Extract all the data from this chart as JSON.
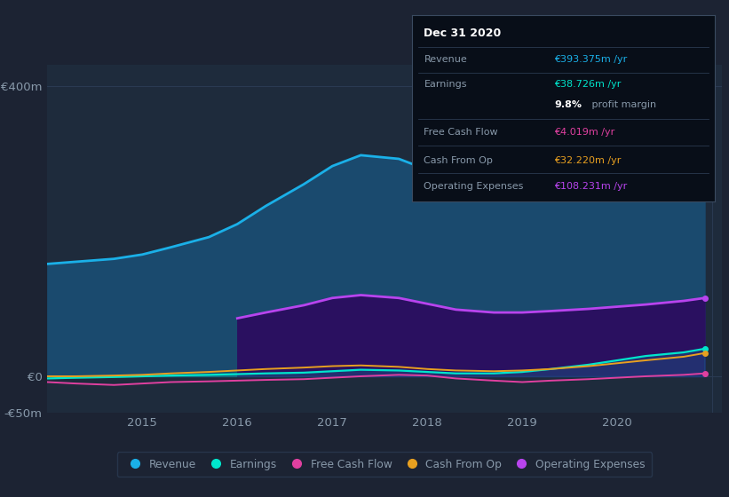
{
  "bg_color": "#1c2333",
  "plot_bg_color": "#1e2b3c",
  "grid_color": "#2a3a52",
  "text_color": "#8899aa",
  "title_color": "#ffffff",
  "years": [
    2014.0,
    2014.3,
    2014.7,
    2015.0,
    2015.3,
    2015.7,
    2016.0,
    2016.3,
    2016.7,
    2017.0,
    2017.3,
    2017.7,
    2018.0,
    2018.3,
    2018.7,
    2019.0,
    2019.3,
    2019.7,
    2020.0,
    2020.3,
    2020.7,
    2020.92
  ],
  "revenue": [
    155,
    158,
    162,
    168,
    178,
    192,
    210,
    235,
    265,
    290,
    305,
    300,
    285,
    278,
    272,
    280,
    295,
    315,
    335,
    355,
    380,
    393
  ],
  "earnings": [
    -3,
    -2,
    -1,
    0,
    1,
    2,
    3,
    4,
    5,
    7,
    9,
    8,
    6,
    4,
    4,
    6,
    10,
    16,
    22,
    28,
    33,
    38
  ],
  "free_cash": [
    -8,
    -10,
    -12,
    -10,
    -8,
    -7,
    -6,
    -5,
    -4,
    -2,
    0,
    2,
    1,
    -3,
    -6,
    -8,
    -6,
    -4,
    -2,
    0,
    2,
    4
  ],
  "cash_from_op": [
    0,
    0,
    1,
    2,
    4,
    6,
    8,
    10,
    12,
    14,
    15,
    13,
    10,
    8,
    7,
    8,
    10,
    14,
    18,
    22,
    27,
    32
  ],
  "op_expenses_x": [
    2016.0,
    2016.3,
    2016.7,
    2017.0,
    2017.3,
    2017.7,
    2018.0,
    2018.3,
    2018.7,
    2019.0,
    2019.3,
    2019.7,
    2020.0,
    2020.3,
    2020.7,
    2020.92
  ],
  "op_expenses": [
    80,
    88,
    98,
    108,
    112,
    108,
    100,
    92,
    88,
    88,
    90,
    93,
    96,
    99,
    104,
    108
  ],
  "revenue_color": "#1ab0e8",
  "earnings_color": "#00e5cc",
  "free_cash_color": "#e040a0",
  "cash_from_op_color": "#e8a020",
  "op_expenses_color": "#b844ee",
  "revenue_fill": "#1a4a6e",
  "op_expenses_fill": "#2a1060",
  "ylim_min": -50,
  "ylim_max": 430,
  "ytick_positions": [
    -50,
    0,
    400
  ],
  "ytick_labels": [
    "-€50m",
    "€0",
    "€400m"
  ],
  "xlim_min": 2014.0,
  "xlim_max": 2021.1,
  "xticks": [
    2015,
    2016,
    2017,
    2018,
    2019,
    2020
  ],
  "tooltip_title": "Dec 31 2020",
  "tooltip_revenue_label": "Revenue",
  "tooltip_revenue_val": "€393.375m /yr",
  "tooltip_earnings_label": "Earnings",
  "tooltip_earnings_val": "€38.726m /yr",
  "tooltip_profit_pct": "9.8%",
  "tooltip_profit_text": " profit margin",
  "tooltip_fcf_label": "Free Cash Flow",
  "tooltip_fcf_val": "€4.019m /yr",
  "tooltip_cfo_label": "Cash From Op",
  "tooltip_cfo_val": "€32.220m /yr",
  "tooltip_opex_label": "Operating Expenses",
  "tooltip_opex_val": "€108.231m /yr",
  "legend_items": [
    "Revenue",
    "Earnings",
    "Free Cash Flow",
    "Cash From Op",
    "Operating Expenses"
  ],
  "legend_colors": [
    "#1ab0e8",
    "#00e5cc",
    "#e040a0",
    "#e8a020",
    "#b844ee"
  ]
}
